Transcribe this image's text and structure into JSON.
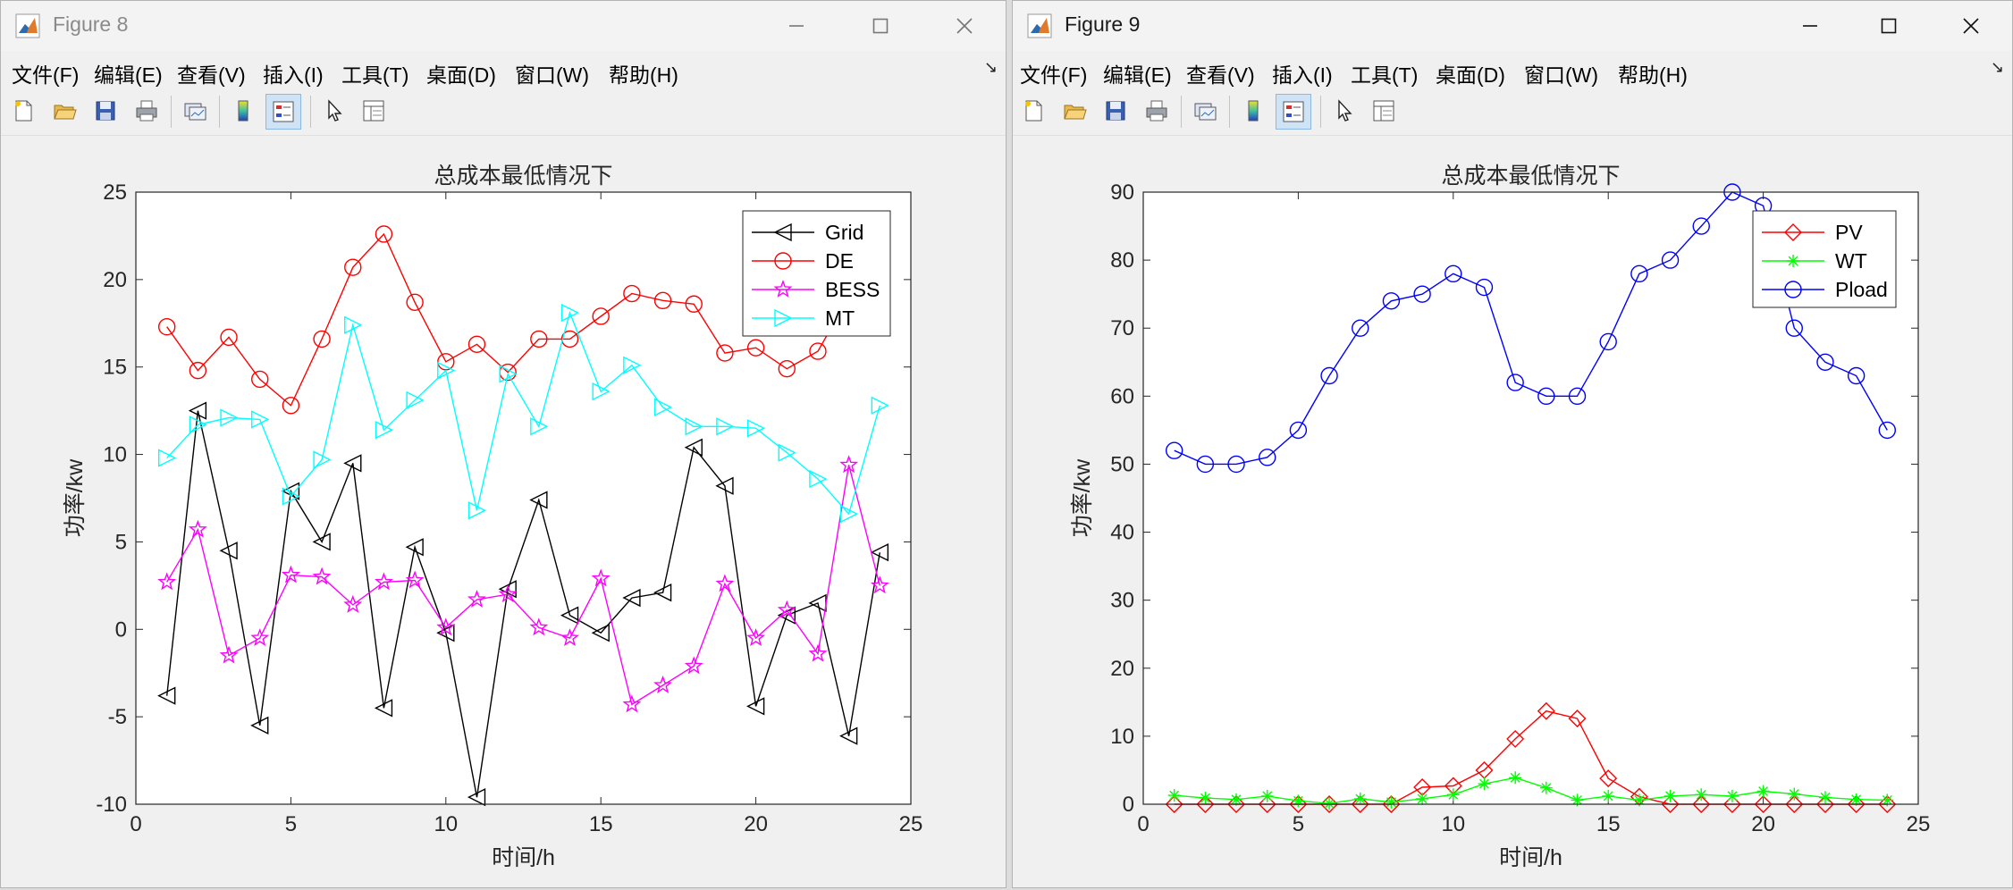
{
  "figures": [
    {
      "window_title": "Figure 8",
      "menu": [
        "文件(F)",
        "编辑(E)",
        "查看(V)",
        "插入(I)",
        "工具(T)",
        "桌面(D)",
        "窗口(W)",
        "帮助(H)"
      ],
      "menu_arrow": "↘"
    },
    {
      "window_title": "Figure 9",
      "menu": [
        "文件(F)",
        "编辑(E)",
        "查看(V)",
        "插入(I)",
        "工具(T)",
        "桌面(D)",
        "窗口(W)",
        "帮助(H)"
      ],
      "menu_arrow": "↘"
    }
  ],
  "icons": [
    "matlab-figure-icon",
    "minimize-icon",
    "maximize-icon",
    "close-icon",
    "new-figure-icon",
    "open-file-icon",
    "save-icon",
    "print-icon",
    "link-plot-icon",
    "colorbar-icon",
    "legend-icon",
    "pointer-icon",
    "property-inspector-icon"
  ],
  "chart_data": [
    {
      "type": "line",
      "title": "总成本最低情况下",
      "xlabel": "时间/h",
      "ylabel": "功率/kw",
      "xlim": [
        0,
        25
      ],
      "ylim": [
        -10,
        25
      ],
      "xticks": [
        0,
        5,
        10,
        15,
        20,
        25
      ],
      "yticks": [
        -10,
        -5,
        0,
        5,
        10,
        15,
        20,
        25
      ],
      "grid": false,
      "legend_position": "top-right",
      "x": [
        1,
        2,
        3,
        4,
        5,
        6,
        7,
        8,
        9,
        10,
        11,
        12,
        13,
        14,
        15,
        16,
        17,
        18,
        19,
        20,
        21,
        22,
        23,
        24
      ],
      "series": [
        {
          "name": "Grid",
          "color": "#000000",
          "marker": "triangle-left",
          "values": [
            -3.8,
            12.5,
            4.5,
            -5.5,
            7.9,
            5.0,
            9.5,
            -4.5,
            4.7,
            -0.2,
            -9.6,
            2.3,
            7.4,
            0.8,
            -0.2,
            1.8,
            2.1,
            10.4,
            8.2,
            -4.4,
            0.8,
            1.5,
            -6.1,
            4.4
          ]
        },
        {
          "name": "DE",
          "color": "#ff0000",
          "marker": "circle",
          "values": [
            17.3,
            14.8,
            16.7,
            14.3,
            12.8,
            16.6,
            20.7,
            22.6,
            18.7,
            15.3,
            16.3,
            14.7,
            16.6,
            16.6,
            17.9,
            19.2,
            18.8,
            18.6,
            15.8,
            16.1,
            14.9,
            15.9,
            19.0,
            19.0
          ]
        },
        {
          "name": "BESS",
          "color": "#ff00ff",
          "marker": "star",
          "values": [
            2.7,
            5.7,
            -1.5,
            -0.5,
            3.1,
            3.0,
            1.4,
            2.7,
            2.8,
            0.1,
            1.7,
            2.0,
            0.1,
            -0.5,
            2.9,
            -4.3,
            -3.2,
            -2.1,
            2.6,
            -0.5,
            1.1,
            -1.4,
            9.4,
            2.5
          ]
        },
        {
          "name": "MT",
          "color": "#00ffff",
          "marker": "triangle-right",
          "values": [
            9.8,
            11.7,
            12.1,
            12.0,
            7.6,
            9.7,
            17.4,
            11.4,
            13.1,
            14.8,
            6.8,
            14.6,
            11.6,
            18.1,
            13.6,
            15.1,
            12.7,
            11.6,
            11.6,
            11.5,
            10.1,
            8.6,
            6.6,
            12.8
          ]
        }
      ]
    },
    {
      "type": "line",
      "title": "总成本最低情况下",
      "xlabel": "时间/h",
      "ylabel": "功率/kw",
      "xlim": [
        0,
        25
      ],
      "ylim": [
        0,
        90
      ],
      "xticks": [
        0,
        5,
        10,
        15,
        20,
        25
      ],
      "yticks": [
        0,
        10,
        20,
        30,
        40,
        50,
        60,
        70,
        80,
        90
      ],
      "grid": false,
      "legend_position": "top-right",
      "x": [
        1,
        2,
        3,
        4,
        5,
        6,
        7,
        8,
        9,
        10,
        11,
        12,
        13,
        14,
        15,
        16,
        17,
        18,
        19,
        20,
        21,
        22,
        23,
        24
      ],
      "series": [
        {
          "name": "PV",
          "color": "#ff0000",
          "marker": "diamond",
          "values": [
            0,
            0,
            0,
            0,
            0,
            0,
            0,
            0,
            2.5,
            2.7,
            5.0,
            9.6,
            13.7,
            12.6,
            3.8,
            1.1,
            0,
            0,
            0,
            0,
            0,
            0,
            0,
            0
          ]
        },
        {
          "name": "WT",
          "color": "#00ff00",
          "marker": "asterisk",
          "values": [
            1.3,
            0.9,
            0.7,
            1.2,
            0.5,
            0.1,
            0.8,
            0.3,
            0.8,
            1.4,
            3.0,
            3.9,
            2.4,
            0.6,
            1.2,
            0.6,
            1.2,
            1.4,
            1.2,
            1.9,
            1.5,
            1.0,
            0.7,
            0.6
          ]
        },
        {
          "name": "Pload",
          "color": "#0000ff",
          "marker": "circle",
          "values": [
            52,
            50,
            50,
            51,
            55,
            63,
            70,
            74,
            75,
            78,
            76,
            62,
            60,
            60,
            68,
            78,
            80,
            85,
            90,
            88,
            70,
            65,
            63,
            55
          ]
        }
      ]
    }
  ]
}
